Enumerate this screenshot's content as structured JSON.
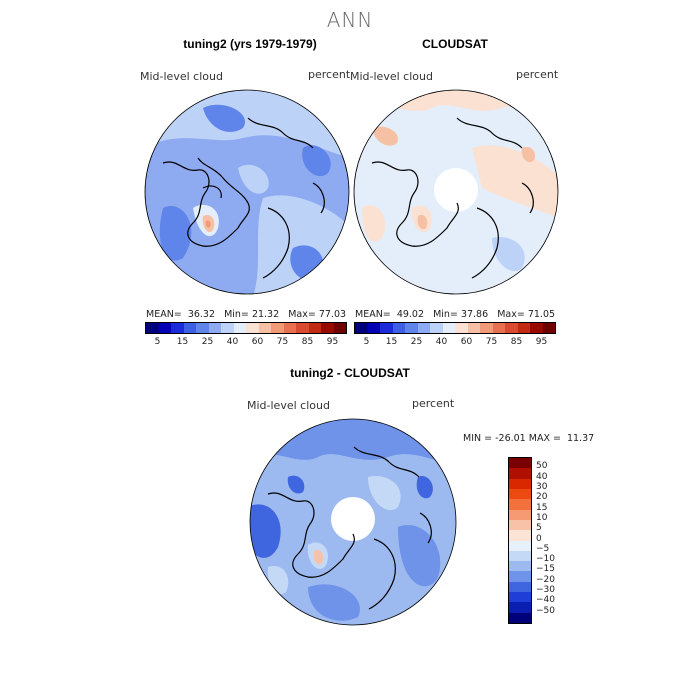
{
  "title": "ANN",
  "panels": [
    {
      "title": "tuning2 (yrs 1979-1979)",
      "variable": "Mid-level cloud",
      "units": "percent",
      "stats": {
        "mean_label": "MEAN=",
        "mean": "36.32",
        "min_label": "Min=",
        "min": "21.32",
        "max_label": "Max=",
        "max": "77.03"
      }
    },
    {
      "title": "CLOUDSAT",
      "variable": "Mid-level cloud",
      "units": "percent",
      "stats": {
        "mean_label": "MEAN=",
        "mean": "49.02",
        "min_label": "Min=",
        "min": "37.86",
        "max_label": "Max=",
        "max": "71.05"
      }
    }
  ],
  "top_colorbar": {
    "ticks": [
      "5",
      "15",
      "25",
      "40",
      "60",
      "75",
      "85",
      "95"
    ],
    "colors": [
      "#00007f",
      "#0000b4",
      "#1c2bd9",
      "#3c5fe6",
      "#5f85eb",
      "#8eaaf0",
      "#bcd2f7",
      "#e4eefa",
      "#fbe1d2",
      "#f6c0a4",
      "#f09a78",
      "#e6704f",
      "#d94a2e",
      "#c02a12",
      "#960a00",
      "#6e0000"
    ]
  },
  "diff_panel": {
    "title": "tuning2 - CLOUDSAT",
    "variable": "Mid-level cloud",
    "units": "percent",
    "minmax": "MIN = -26.01 MAX =  11.37",
    "colorbar_ticks": [
      "50",
      "40",
      "30",
      "20",
      "15",
      "10",
      "5",
      "0",
      "−5",
      "−10",
      "−15",
      "−20",
      "−30",
      "−40",
      "−50"
    ],
    "colorbar_colors": [
      "#7a0000",
      "#b01000",
      "#d92800",
      "#ec4a10",
      "#f2703c",
      "#f59a72",
      "#f8c2a8",
      "#fbe3d6",
      "#e6f0fb",
      "#c4d9f6",
      "#9cbaf0",
      "#6f93e8",
      "#3f66df",
      "#1f3ed8",
      "#0a1fb0",
      "#00007a"
    ]
  }
}
